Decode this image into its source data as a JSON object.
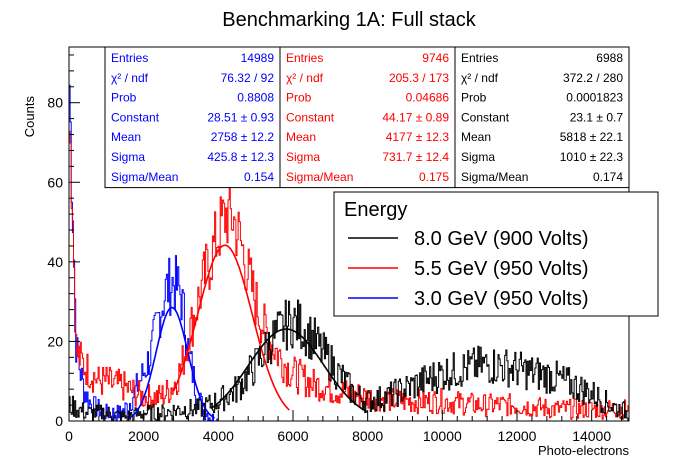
{
  "chart_data": {
    "type": "line",
    "title": "Benchmarking 1A: Full stack",
    "xlabel": "Photo-electrons",
    "ylabel": "Counts",
    "xlim": [
      0,
      15000
    ],
    "ylim": [
      0,
      94
    ],
    "x_ticks": [
      0,
      2000,
      4000,
      6000,
      8000,
      10000,
      12000,
      14000
    ],
    "y_ticks": [
      0,
      20,
      40,
      60,
      80
    ],
    "legend": {
      "header": "Energy",
      "position": "top-right",
      "entries": [
        {
          "label": "8.0 GeV (900 Volts)",
          "color": "#000000"
        },
        {
          "label": "5.5 GeV (950 Volts)",
          "color": "#ff0000"
        },
        {
          "label": "3.0 GeV (950 Volts)",
          "color": "#0000ff"
        }
      ]
    },
    "stat_boxes": [
      {
        "color": "#0000ff",
        "rows": [
          {
            "label": "Entries",
            "value": "14989"
          },
          {
            "label": "χ² / ndf",
            "value": "76.32 / 92"
          },
          {
            "label": "Prob",
            "value": "0.8808"
          },
          {
            "label": "Constant",
            "value": "28.51 ± 0.93"
          },
          {
            "label": "Mean",
            "value": "2758 ± 12.2"
          },
          {
            "label": "Sigma",
            "value": "425.8 ± 12.3"
          },
          {
            "label": "Sigma/Mean",
            "value": "0.154"
          }
        ]
      },
      {
        "color": "#ff0000",
        "rows": [
          {
            "label": "Entries",
            "value": "9746"
          },
          {
            "label": "χ² / ndf",
            "value": "205.3 / 173"
          },
          {
            "label": "Prob",
            "value": "0.04686"
          },
          {
            "label": "Constant",
            "value": "44.17 ± 0.89"
          },
          {
            "label": "Mean",
            "value": "4177 ± 12.3"
          },
          {
            "label": "Sigma",
            "value": "731.7 ± 12.4"
          },
          {
            "label": "Sigma/Mean",
            "value": "0.175"
          }
        ]
      },
      {
        "color": "#000000",
        "rows": [
          {
            "label": "Entries",
            "value": "6988"
          },
          {
            "label": "χ² / ndf",
            "value": "372.2 / 280"
          },
          {
            "label": "Prob",
            "value": "0.0001823"
          },
          {
            "label": "Constant",
            "value": "23.1 ± 0.7"
          },
          {
            "label": "Mean",
            "value": "5818 ± 22.1"
          },
          {
            "label": "Sigma",
            "value": "1010 ± 22.3"
          },
          {
            "label": "Sigma/Mean",
            "value": "0.174"
          }
        ]
      }
    ],
    "series": [
      {
        "name": "3.0 GeV (950 Volts)",
        "color": "#0000ff",
        "x": [
          0,
          200,
          400,
          600,
          800,
          1000,
          1200,
          1400,
          1600,
          1800,
          2000,
          2200,
          2400,
          2600,
          2800,
          3000,
          3200,
          3400,
          3600,
          3800,
          4000,
          4500,
          5000,
          6000,
          8000,
          10000,
          12000,
          14000,
          15000
        ],
        "y": [
          90,
          18,
          8,
          4,
          3,
          2,
          2,
          2,
          4,
          8,
          12,
          17,
          26,
          33,
          35,
          32,
          18,
          8,
          3,
          1,
          0,
          0,
          0,
          0,
          0,
          0,
          0,
          0,
          0
        ]
      },
      {
        "name": "5.5 GeV (950 Volts)",
        "color": "#ff0000",
        "x": [
          0,
          200,
          400,
          600,
          800,
          1000,
          1200,
          1400,
          1600,
          1800,
          2000,
          2200,
          2400,
          2600,
          2800,
          3000,
          3200,
          3400,
          3600,
          3800,
          4000,
          4200,
          4400,
          4600,
          4800,
          5000,
          5200,
          5400,
          5600,
          5800,
          6000,
          6200,
          6400,
          6600,
          6800,
          7000,
          7500,
          8000,
          9000,
          10000,
          11000,
          12000,
          13000,
          14000,
          15000
        ],
        "y": [
          88,
          17,
          14,
          12,
          10,
          10,
          9,
          9,
          8,
          7,
          6,
          6,
          6,
          7,
          9,
          13,
          21,
          28,
          35,
          41,
          47,
          52,
          51,
          45,
          37,
          30,
          24,
          20,
          17,
          14,
          12,
          11,
          10,
          9,
          9,
          8,
          7,
          6,
          5,
          5,
          4,
          4,
          3,
          3,
          3
        ]
      },
      {
        "name": "8.0 GeV (900 Volts)",
        "color": "#000000",
        "x": [
          0,
          500,
          1000,
          1500,
          2000,
          2500,
          3000,
          3500,
          4000,
          4500,
          5000,
          5200,
          5400,
          5600,
          5800,
          6000,
          6200,
          6400,
          6600,
          6800,
          7000,
          7200,
          7400,
          7600,
          7800,
          8000,
          8500,
          9000,
          9500,
          10000,
          10500,
          11000,
          11500,
          12000,
          12500,
          13000,
          13500,
          14000,
          14500,
          15000
        ],
        "y": [
          4,
          2,
          2,
          1,
          2,
          2,
          3,
          3,
          5,
          8,
          14,
          17,
          20,
          22,
          24,
          25,
          24,
          22,
          20,
          17,
          15,
          12,
          10,
          7,
          6,
          5,
          6,
          8,
          10,
          12,
          13,
          14,
          14,
          13,
          12,
          11,
          9,
          7,
          4,
          2
        ]
      }
    ],
    "fits": [
      {
        "name": "3.0 GeV (950 Volts)",
        "color": "#0000ff",
        "constant": 28.51,
        "mean": 2758,
        "sigma": 425.8,
        "range": [
          1600,
          3900
        ]
      },
      {
        "name": "5.5 GeV (950 Volts)",
        "color": "#ff0000",
        "constant": 44.17,
        "mean": 4177,
        "sigma": 731.7,
        "range": [
          2800,
          5900
        ]
      },
      {
        "name": "8.0 GeV (900 Volts)",
        "color": "#000000",
        "constant": 23.1,
        "mean": 5818,
        "sigma": 1010,
        "range": [
          3800,
          8000
        ]
      }
    ]
  }
}
